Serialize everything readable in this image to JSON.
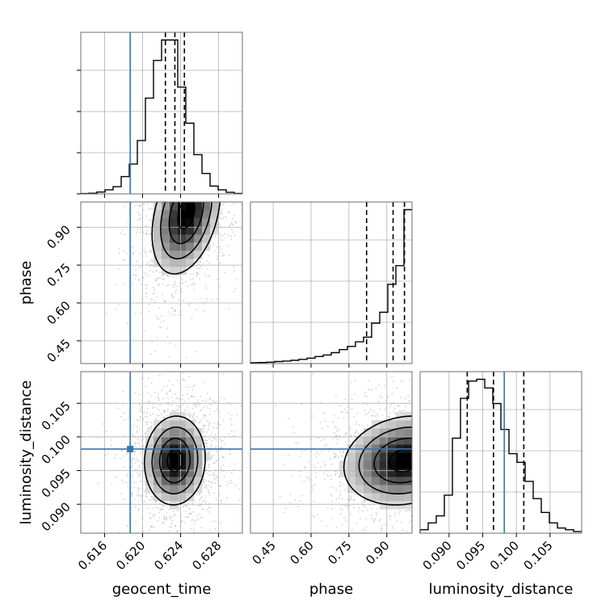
{
  "chart_data": {
    "type": "corner",
    "parameters": [
      "geocent_time",
      "phase",
      "luminosity_distance"
    ],
    "truth": {
      "geocent_time": 0.6187,
      "phase": null,
      "luminosity_distance": 0.0982
    },
    "truth_color": "#3b75af",
    "axes": {
      "geocent_time": {
        "lim": [
          0.6135,
          0.6305
        ],
        "ticks": [
          0.616,
          0.62,
          0.624,
          0.628
        ],
        "tick_labels": [
          "0.616",
          "0.620",
          "0.624",
          "0.628"
        ]
      },
      "phase": {
        "lim": [
          0.36,
          1.0
        ],
        "ticks": [
          0.45,
          0.6,
          0.75,
          0.9
        ],
        "tick_labels": [
          "0.45",
          "0.60",
          "0.75",
          "0.90"
        ]
      },
      "luminosity_distance": {
        "lim": [
          0.0857,
          0.1097
        ],
        "ticks": [
          0.09,
          0.095,
          0.1,
          0.105
        ],
        "tick_labels": [
          "0.090",
          "0.095",
          "0.100",
          "0.105"
        ]
      }
    },
    "marginals": {
      "geocent_time": {
        "quantiles": [
          0.6224,
          0.6234,
          0.6244
        ],
        "bin_edges": [
          0.6135,
          0.61435,
          0.6152,
          0.61605,
          0.6169,
          0.61775,
          0.6186,
          0.61945,
          0.6203,
          0.62115,
          0.622,
          0.62285,
          0.6237,
          0.62455,
          0.6254,
          0.62625,
          0.6271,
          0.62795,
          0.6288,
          0.62965,
          0.6305
        ],
        "counts": [
          0.2,
          0.4,
          1.2,
          2.6,
          4.6,
          11,
          19,
          34,
          61,
          85,
          98,
          98,
          68,
          45,
          25,
          13,
          5,
          2.6,
          1,
          0.3
        ]
      },
      "phase": {
        "quantiles": [
          0.82,
          0.925,
          0.97
        ],
        "bin_edges": [
          0.36,
          0.392,
          0.424,
          0.456,
          0.488,
          0.52,
          0.552,
          0.584,
          0.616,
          0.648,
          0.68,
          0.712,
          0.744,
          0.776,
          0.808,
          0.84,
          0.872,
          0.904,
          0.936,
          0.968,
          1.0
        ],
        "counts": [
          0.5,
          0.7,
          0.9,
          1.3,
          1.6,
          2.1,
          2.7,
          3.5,
          4.5,
          5.5,
          7,
          9,
          11,
          14,
          17,
          26,
          33,
          51,
          63,
          99
        ]
      },
      "luminosity_distance": {
        "quantiles": [
          0.0927,
          0.0966,
          0.1011
        ],
        "bin_edges": [
          0.0857,
          0.0869,
          0.0881,
          0.0893,
          0.0905,
          0.0917,
          0.0929,
          0.0941,
          0.0953,
          0.0965,
          0.0977,
          0.0989,
          0.1001,
          0.1013,
          0.1025,
          0.1037,
          0.1049,
          0.1061,
          0.1073,
          0.1085,
          0.1097
        ],
        "counts": [
          2,
          6,
          10,
          22,
          55,
          78,
          88,
          89,
          84,
          75,
          60,
          46,
          41,
          30,
          20,
          12,
          6,
          3,
          2,
          1
        ]
      }
    },
    "pairs": [
      {
        "x": "geocent_time",
        "y": "phase",
        "peak": [
          0.6246,
          0.955
        ],
        "sigma": [
          0.0018,
          0.12
        ],
        "rho": 0.35
      },
      {
        "x": "geocent_time",
        "y": "luminosity_distance",
        "peak": [
          0.6234,
          0.0965
        ],
        "sigma": [
          0.0016,
          0.0033
        ],
        "rho": 0.05
      },
      {
        "x": "phase",
        "y": "luminosity_distance",
        "peak": [
          0.97,
          0.0965
        ],
        "sigma": [
          0.12,
          0.0033
        ],
        "rho": 0.15
      }
    ]
  }
}
